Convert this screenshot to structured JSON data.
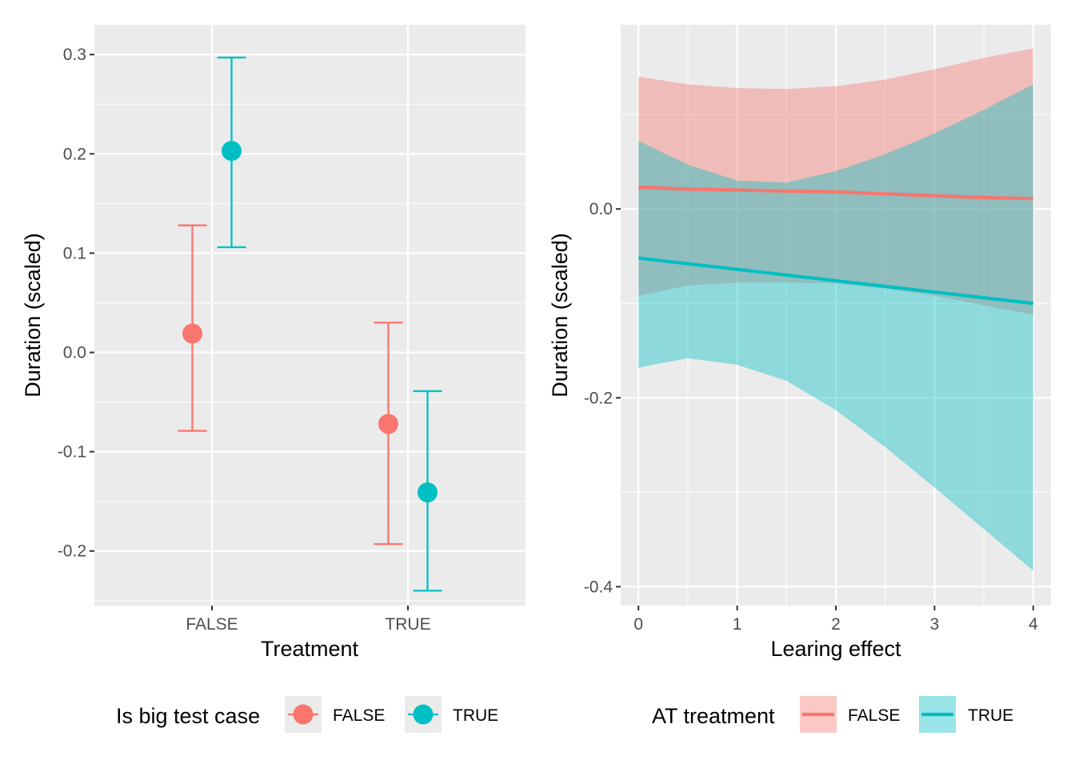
{
  "chart_data": [
    {
      "type": "scatter",
      "subtype": "point-with-error-bars",
      "xlabel": "Treatment",
      "ylabel": "Duration (scaled)",
      "categories": [
        "FALSE",
        "TRUE"
      ],
      "ylim": [
        -0.255,
        0.33
      ],
      "yticks": [
        -0.2,
        -0.1,
        0.0,
        0.1,
        0.2,
        0.3
      ],
      "ytick_labels": [
        "-0.2",
        "-0.1",
        "0.0",
        "0.1",
        "0.2",
        "0.3"
      ],
      "grid": true,
      "legend": {
        "title": "Is big test case",
        "position": "bottom",
        "entries": [
          "FALSE",
          "TRUE"
        ]
      },
      "series": [
        {
          "name": "FALSE",
          "color": "#F8766D",
          "points": [
            {
              "x": "FALSE",
              "y": 0.019,
              "lower": -0.079,
              "upper": 0.128
            },
            {
              "x": "TRUE",
              "y": -0.072,
              "lower": -0.193,
              "upper": 0.03
            }
          ]
        },
        {
          "name": "TRUE",
          "color": "#00BFC4",
          "points": [
            {
              "x": "FALSE",
              "y": 0.203,
              "lower": 0.106,
              "upper": 0.297
            },
            {
              "x": "TRUE",
              "y": -0.141,
              "lower": -0.24,
              "upper": -0.039
            }
          ]
        }
      ]
    },
    {
      "type": "line",
      "subtype": "line-with-confidence-band",
      "xlabel": "Learing effect",
      "ylabel": "Duration (scaled)",
      "xlim": [
        -0.18,
        4.18
      ],
      "ylim": [
        -0.42,
        0.195
      ],
      "xticks": [
        0,
        1,
        2,
        3,
        4
      ],
      "xtick_labels": [
        "0",
        "1",
        "2",
        "3",
        "4"
      ],
      "yticks": [
        -0.4,
        -0.2,
        0.0
      ],
      "ytick_labels": [
        "-0.4",
        "-0.2",
        "0.0"
      ],
      "grid": true,
      "legend": {
        "title": "AT treatment",
        "position": "bottom",
        "entries": [
          "FALSE",
          "TRUE"
        ]
      },
      "series": [
        {
          "name": "FALSE",
          "color": "#F8766D",
          "x": [
            0,
            0.5,
            1,
            1.5,
            2,
            2.5,
            3,
            3.5,
            4
          ],
          "y": [
            0.023,
            0.021,
            0.02,
            0.019,
            0.018,
            0.016,
            0.014,
            0.012,
            0.011
          ],
          "lower": [
            -0.092,
            -0.081,
            -0.078,
            -0.078,
            -0.079,
            -0.084,
            -0.092,
            -0.102,
            -0.112
          ],
          "upper": [
            0.14,
            0.132,
            0.128,
            0.127,
            0.13,
            0.137,
            0.148,
            0.16,
            0.17
          ]
        },
        {
          "name": "TRUE",
          "color": "#00BFC4",
          "x": [
            0,
            0.5,
            1,
            1.5,
            2,
            2.5,
            3,
            3.5,
            4
          ],
          "y": [
            -0.052,
            -0.058,
            -0.064,
            -0.07,
            -0.076,
            -0.082,
            -0.088,
            -0.094,
            -0.1
          ],
          "lower": [
            -0.168,
            -0.158,
            -0.165,
            -0.182,
            -0.213,
            -0.252,
            -0.295,
            -0.339,
            -0.383
          ],
          "upper": [
            0.072,
            0.047,
            0.03,
            0.028,
            0.04,
            0.058,
            0.08,
            0.105,
            0.132
          ]
        }
      ]
    }
  ]
}
